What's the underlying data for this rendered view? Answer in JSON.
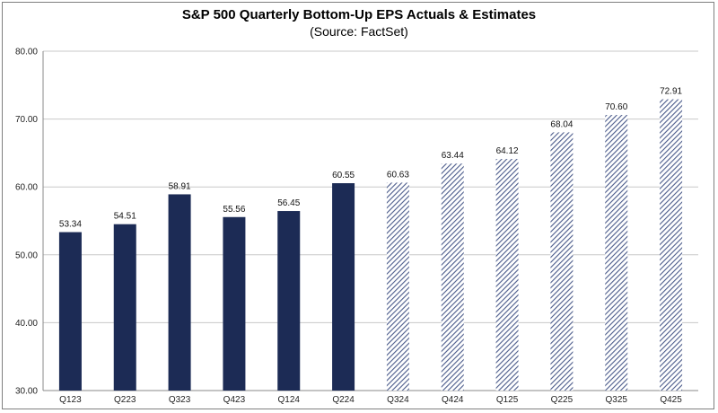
{
  "chart_data": {
    "type": "bar",
    "title": "S&P 500 Quarterly Bottom-Up EPS Actuals & Estimates",
    "subtitle": "(Source: FactSet)",
    "categories": [
      "Q123",
      "Q223",
      "Q323",
      "Q423",
      "Q124",
      "Q224",
      "Q324",
      "Q424",
      "Q125",
      "Q225",
      "Q325",
      "Q425"
    ],
    "values": [
      53.34,
      54.51,
      58.91,
      55.56,
      56.45,
      60.55,
      60.63,
      63.44,
      64.12,
      68.04,
      70.6,
      72.91
    ],
    "value_labels": [
      "53.34",
      "54.51",
      "58.91",
      "55.56",
      "56.45",
      "60.55",
      "60.63",
      "63.44",
      "64.12",
      "68.04",
      "70.60",
      "72.91"
    ],
    "bar_style": [
      "actual",
      "actual",
      "actual",
      "actual",
      "actual",
      "actual",
      "estimate",
      "estimate",
      "estimate",
      "estimate",
      "estimate",
      "estimate"
    ],
    "ylim": [
      30,
      80
    ],
    "yticks": [
      "30.00",
      "40.00",
      "50.00",
      "60.00",
      "70.00",
      "80.00"
    ],
    "grid": "horizontal",
    "legend": "none",
    "colors": {
      "actual": "#1c2b55",
      "estimate_stripe": "#4a5a8a",
      "grid": "#c8c8c8"
    }
  }
}
